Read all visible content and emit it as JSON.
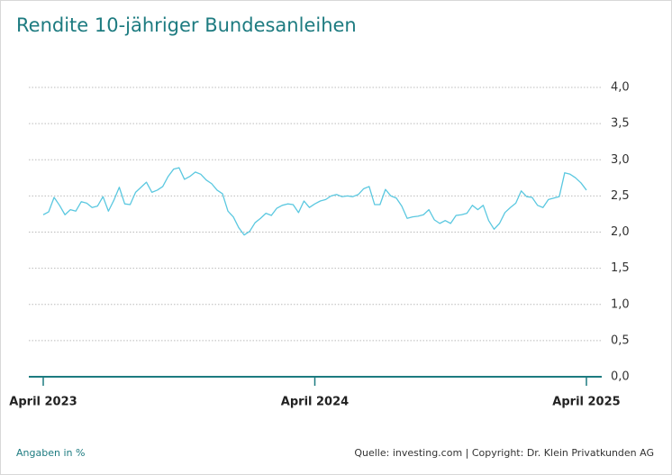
{
  "chart_data": {
    "type": "line",
    "title": "Rendite 10-jähriger Bundesanleihen",
    "subtitle": "Angaben in %",
    "source": "Quelle: investing.com | Copyright: Dr. Klein Privatkunden AG",
    "categories": [
      "April 2023",
      null,
      null,
      null,
      null,
      null,
      null,
      null,
      null,
      null,
      null,
      null,
      null,
      null,
      null,
      null,
      null,
      null,
      null,
      null,
      null,
      null,
      null,
      null,
      null,
      null,
      null,
      null,
      null,
      null,
      null,
      null,
      null,
      null,
      null,
      null,
      null,
      null,
      null,
      null,
      null,
      null,
      null,
      null,
      null,
      null,
      null,
      null,
      null,
      null,
      "April 2024",
      null,
      null,
      null,
      null,
      null,
      null,
      null,
      null,
      null,
      null,
      null,
      null,
      null,
      null,
      null,
      null,
      null,
      null,
      null,
      null,
      null,
      null,
      null,
      null,
      null,
      null,
      null,
      null,
      null,
      null,
      null,
      null,
      null,
      null,
      null,
      null,
      null,
      null,
      null,
      null,
      null,
      null,
      null,
      null,
      null,
      null,
      null,
      null,
      null,
      "April 2025"
    ],
    "series": [
      {
        "name": "Rendite",
        "color": "#5bc8e0",
        "values": [
          2.24,
          2.28,
          2.48,
          2.37,
          2.24,
          2.31,
          2.29,
          2.42,
          2.4,
          2.34,
          2.36,
          2.49,
          2.29,
          2.44,
          2.62,
          2.39,
          2.38,
          2.55,
          2.62,
          2.69,
          2.55,
          2.58,
          2.63,
          2.77,
          2.87,
          2.89,
          2.73,
          2.77,
          2.83,
          2.8,
          2.72,
          2.67,
          2.58,
          2.53,
          2.29,
          2.21,
          2.06,
          1.96,
          2.01,
          2.13,
          2.19,
          2.26,
          2.23,
          2.33,
          2.37,
          2.39,
          2.38,
          2.27,
          2.43,
          2.34,
          2.39,
          2.43,
          2.45,
          2.5,
          2.52,
          2.49,
          2.5,
          2.49,
          2.52,
          2.6,
          2.63,
          2.38,
          2.38,
          2.59,
          2.5,
          2.47,
          2.36,
          2.19,
          2.21,
          2.22,
          2.24,
          2.31,
          2.17,
          2.12,
          2.16,
          2.12,
          2.23,
          2.24,
          2.26,
          2.37,
          2.31,
          2.37,
          2.16,
          2.04,
          2.12,
          2.27,
          2.34,
          2.4,
          2.57,
          2.49,
          2.48,
          2.37,
          2.34,
          2.45,
          2.47,
          2.49,
          2.82,
          2.8,
          2.75,
          2.68,
          2.58
        ]
      }
    ],
    "ylim": [
      0,
      4
    ],
    "yticks": [
      {
        "value": 0,
        "label": "0,0"
      },
      {
        "value": 0.5,
        "label": "0,5"
      },
      {
        "value": 1,
        "label": "1,0"
      },
      {
        "value": 1.5,
        "label": "1,5"
      },
      {
        "value": 2,
        "label": "2,0"
      },
      {
        "value": 2.5,
        "label": "2,5"
      },
      {
        "value": 3,
        "label": "3,0"
      },
      {
        "value": 3.5,
        "label": "3,5"
      },
      {
        "value": 4,
        "label": "4,0"
      }
    ],
    "grid": true
  }
}
